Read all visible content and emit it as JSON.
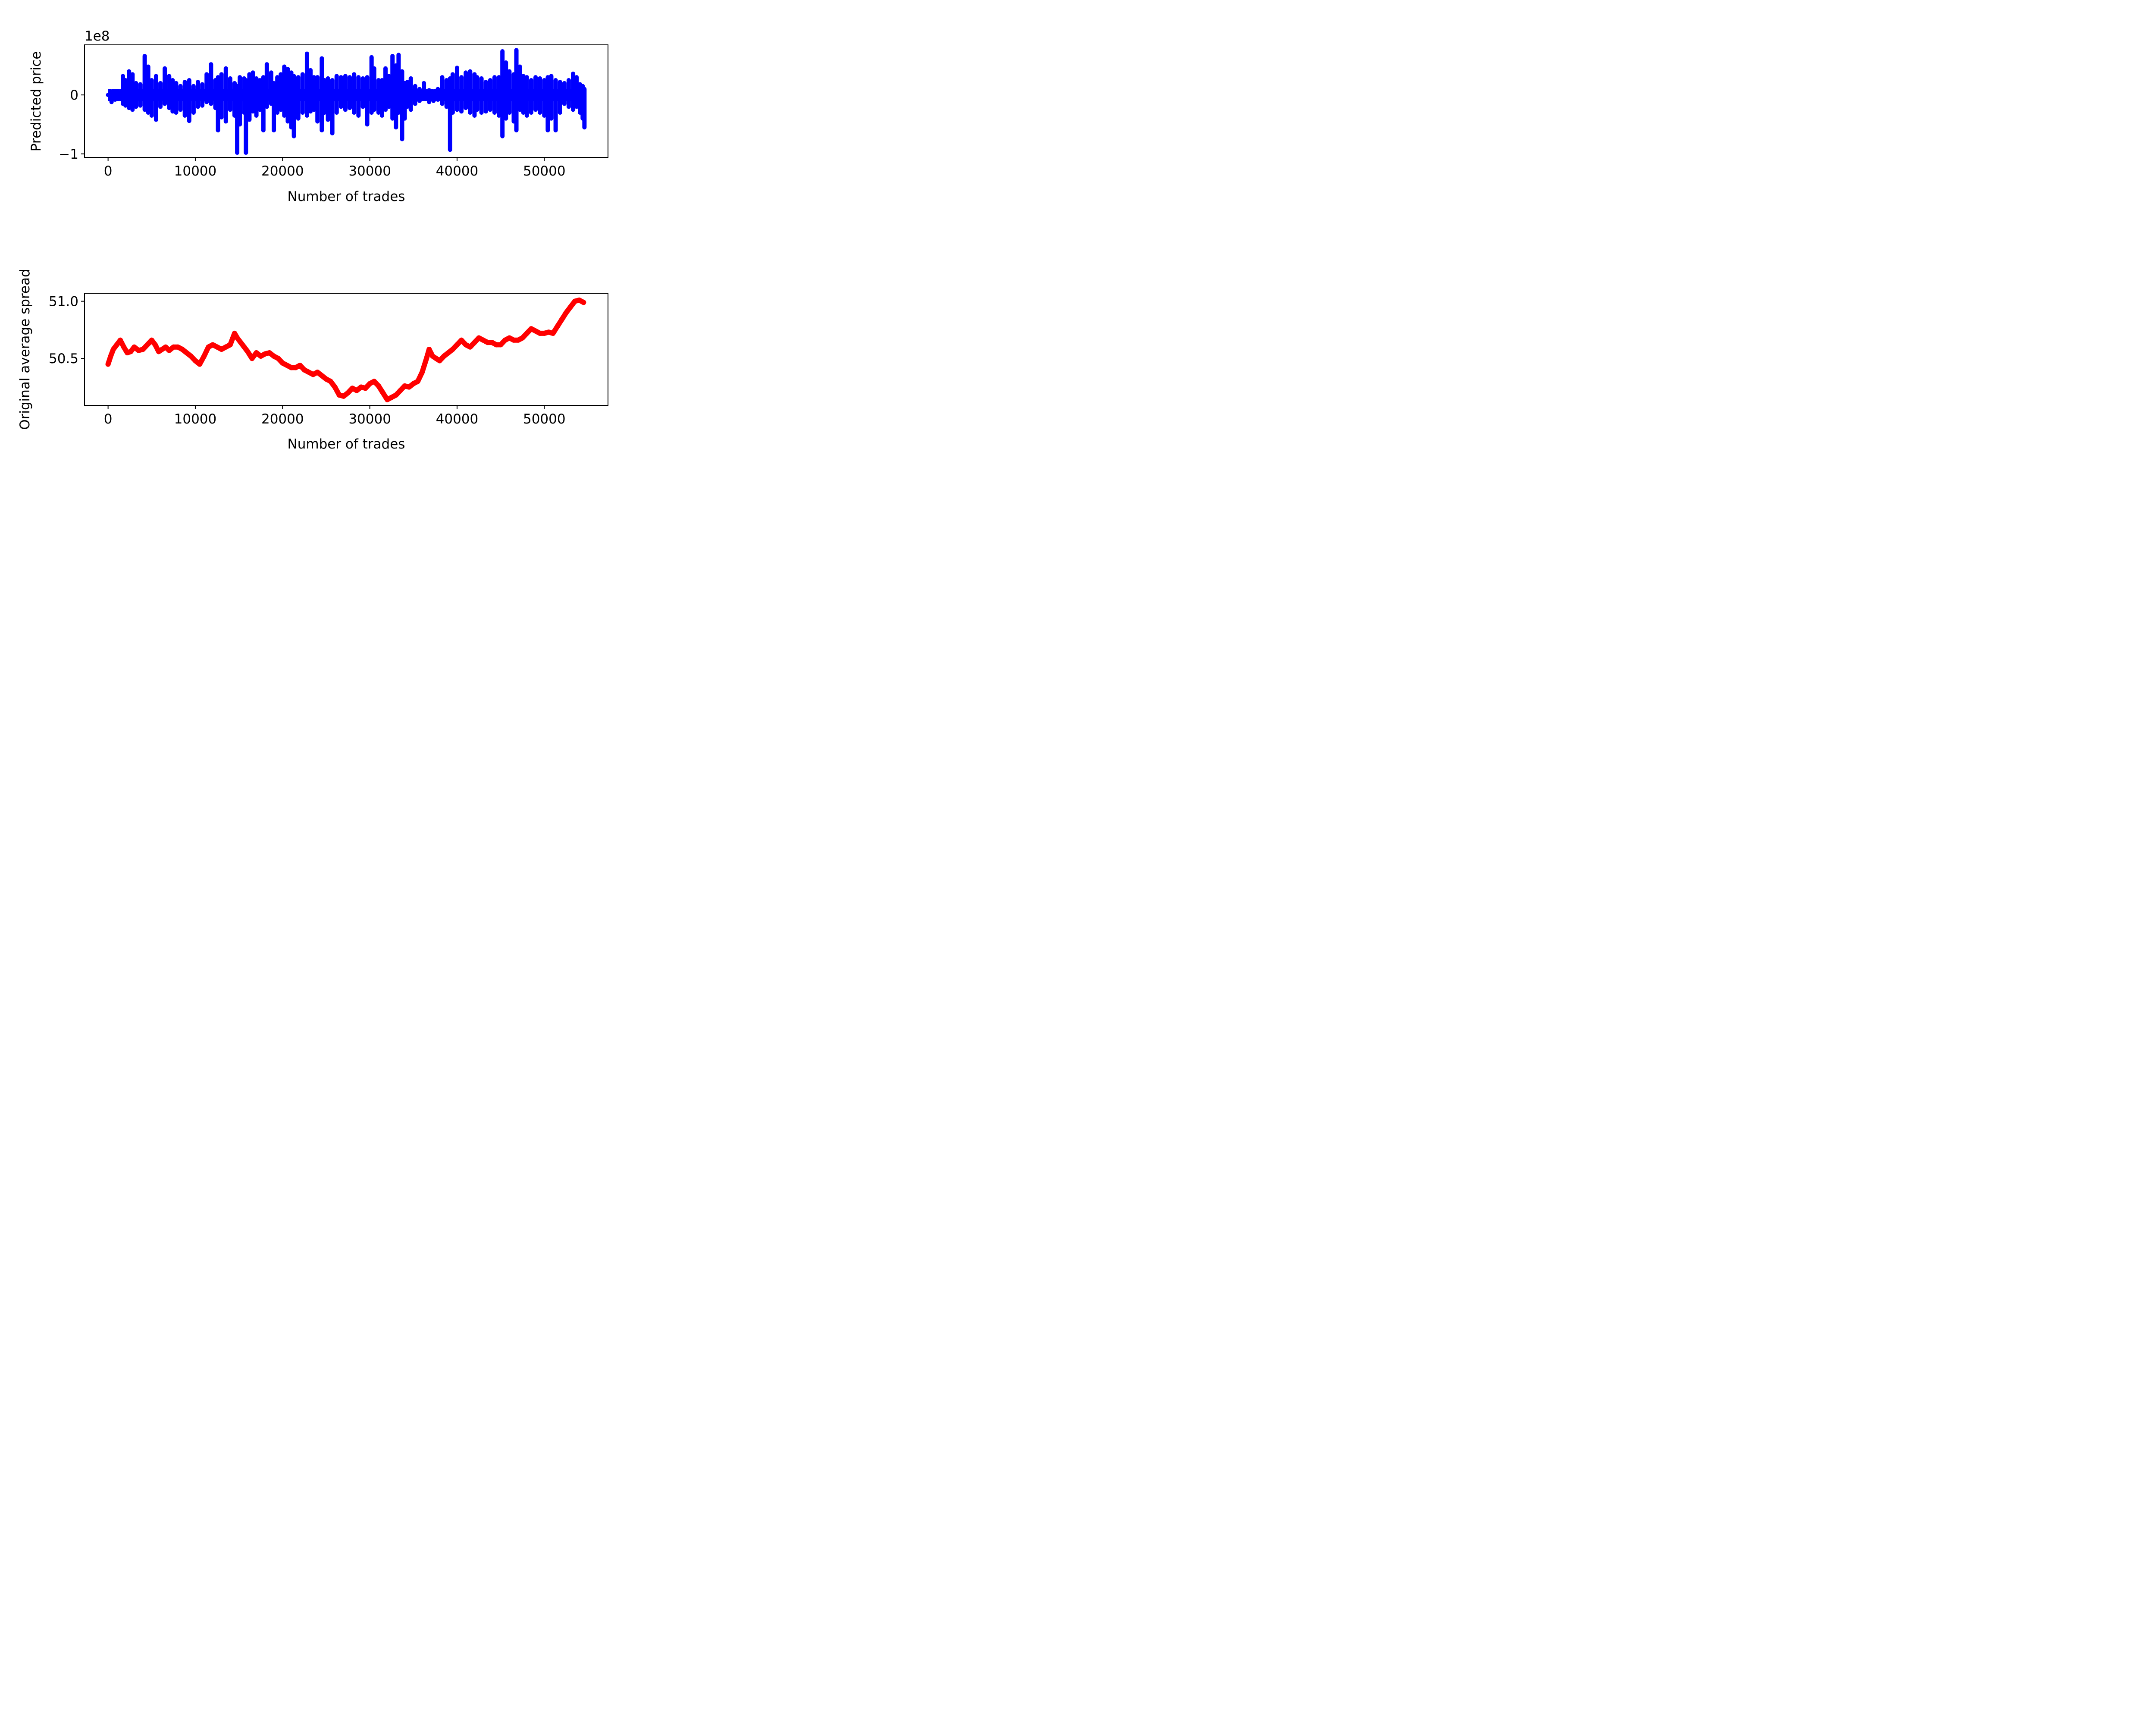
{
  "chart_data": [
    {
      "type": "scatter",
      "xlabel": "Number of trades",
      "ylabel": "Predicted price",
      "offset_text": "1e8",
      "xlim": [
        -2700,
        57300
      ],
      "ylim": [
        -1.06,
        0.85
      ],
      "xticks": [
        0,
        10000,
        20000,
        30000,
        40000,
        50000
      ],
      "xtick_labels": [
        "0",
        "10000",
        "20000",
        "30000",
        "40000",
        "50000"
      ],
      "yticks": [
        -1,
        0
      ],
      "ytick_labels": [
        "−1",
        "0"
      ],
      "grid": false,
      "color": "#0000ff",
      "series": [
        {
          "x": [
            0,
            400,
            800,
            1300,
            1700,
            2000,
            2400,
            2800,
            3200,
            3700,
            4200,
            4600,
            5000,
            5500,
            6000,
            6500,
            7000,
            7400,
            7800,
            8300,
            8800,
            9300,
            9800,
            10300,
            10800,
            11300,
            11800,
            12300,
            12600,
            13000,
            13500,
            14000,
            14500,
            14800,
            15100,
            15600,
            15800,
            16200,
            16600,
            17000,
            17400,
            17800,
            18200,
            18700,
            19000,
            19400,
            19800,
            20200,
            20600,
            21000,
            21300,
            21800,
            22300,
            22800,
            23200,
            23600,
            24000,
            24500,
            24800,
            25200,
            25700,
            26200,
            26700,
            27200,
            27700,
            28200,
            28700,
            29200,
            29700,
            30200,
            30500,
            31000,
            31400,
            31800,
            32200,
            32600,
            33000,
            33300,
            33700,
            34000,
            34300,
            34700,
            35200,
            35700,
            36200,
            36800,
            37300,
            37800,
            38300,
            38800,
            39200,
            39500,
            40000,
            40500,
            41000,
            41500,
            42000,
            42300,
            42800,
            43300,
            43800,
            44300,
            44800,
            45200,
            45600,
            46000,
            46500,
            46800,
            47200,
            47600,
            48000,
            48500,
            49000,
            49500,
            50000,
            50400,
            50800,
            51300,
            51800,
            52300,
            52800,
            53300,
            53700,
            54100,
            54400,
            54600
          ],
          "y_min": [
            0.0,
            -0.12,
            -0.08,
            -0.05,
            -0.15,
            -0.18,
            -0.22,
            -0.25,
            -0.2,
            -0.18,
            -0.25,
            -0.3,
            -0.35,
            -0.42,
            -0.2,
            -0.15,
            -0.22,
            -0.28,
            -0.3,
            -0.25,
            -0.35,
            -0.44,
            -0.3,
            -0.2,
            -0.18,
            -0.12,
            -0.15,
            -0.22,
            -0.6,
            -0.38,
            -0.45,
            -0.25,
            -0.35,
            -0.98,
            -0.5,
            -0.3,
            -0.98,
            -0.42,
            -0.28,
            -0.35,
            -0.25,
            -0.6,
            -0.2,
            -0.15,
            -0.6,
            -0.3,
            -0.25,
            -0.35,
            -0.45,
            -0.55,
            -0.7,
            -0.4,
            -0.3,
            -0.35,
            -0.28,
            -0.25,
            -0.45,
            -0.6,
            -0.3,
            -0.42,
            -0.65,
            -0.3,
            -0.2,
            -0.25,
            -0.22,
            -0.3,
            -0.35,
            -0.2,
            -0.5,
            -0.3,
            -0.25,
            -0.3,
            -0.35,
            -0.25,
            -0.2,
            -0.4,
            -0.55,
            -0.3,
            -0.75,
            -0.4,
            -0.2,
            -0.25,
            -0.15,
            -0.1,
            -0.05,
            -0.12,
            -0.1,
            -0.08,
            -0.15,
            -0.2,
            -0.93,
            -0.3,
            -0.25,
            -0.28,
            -0.22,
            -0.3,
            -0.35,
            -0.25,
            -0.3,
            -0.28,
            -0.25,
            -0.3,
            -0.35,
            -0.7,
            -0.4,
            -0.3,
            -0.45,
            -0.6,
            -0.25,
            -0.3,
            -0.35,
            -0.3,
            -0.25,
            -0.3,
            -0.35,
            -0.6,
            -0.4,
            -0.6,
            -0.3,
            -0.15,
            -0.2,
            -0.25,
            -0.2,
            -0.3,
            -0.4,
            -0.55
          ],
          "y_max": [
            0.0,
            0.05,
            0.06,
            0.04,
            0.32,
            0.25,
            0.4,
            0.35,
            0.2,
            0.18,
            0.66,
            0.48,
            0.25,
            0.32,
            0.2,
            0.45,
            0.32,
            0.25,
            0.2,
            0.15,
            0.22,
            0.25,
            0.15,
            0.22,
            0.18,
            0.35,
            0.52,
            0.25,
            0.3,
            0.35,
            0.45,
            0.28,
            0.2,
            0.15,
            0.3,
            0.28,
            0.25,
            0.35,
            0.38,
            0.28,
            0.25,
            0.3,
            0.52,
            0.38,
            0.2,
            0.3,
            0.35,
            0.48,
            0.44,
            0.38,
            0.32,
            0.3,
            0.35,
            0.7,
            0.42,
            0.3,
            0.3,
            0.62,
            0.25,
            0.28,
            0.25,
            0.32,
            0.3,
            0.32,
            0.3,
            0.35,
            0.3,
            0.28,
            0.3,
            0.64,
            0.45,
            0.25,
            0.25,
            0.45,
            0.32,
            0.66,
            0.5,
            0.68,
            0.4,
            0.2,
            0.22,
            0.28,
            0.15,
            0.1,
            0.2,
            0.08,
            0.05,
            0.1,
            0.3,
            0.25,
            0.28,
            0.35,
            0.46,
            0.3,
            0.38,
            0.4,
            0.35,
            0.3,
            0.28,
            0.22,
            0.25,
            0.3,
            0.3,
            0.74,
            0.55,
            0.4,
            0.35,
            0.76,
            0.48,
            0.32,
            0.3,
            0.25,
            0.3,
            0.28,
            0.25,
            0.3,
            0.32,
            0.25,
            0.22,
            0.2,
            0.25,
            0.36,
            0.3,
            0.18,
            0.15,
            0.1
          ]
        }
      ]
    },
    {
      "type": "line",
      "xlabel": "Number of trades",
      "ylabel": "Original average spread",
      "xlim": [
        -2700,
        57300
      ],
      "ylim": [
        50.09,
        51.07
      ],
      "xticks": [
        0,
        10000,
        20000,
        30000,
        40000,
        50000
      ],
      "xtick_labels": [
        "0",
        "10000",
        "20000",
        "30000",
        "40000",
        "50000"
      ],
      "yticks": [
        50.5,
        51.0
      ],
      "ytick_labels": [
        "50.5",
        "51.0"
      ],
      "grid": false,
      "color": "#ff0000",
      "series": [
        {
          "x": [
            0,
            300,
            600,
            1000,
            1400,
            1800,
            2200,
            2600,
            3000,
            3500,
            4000,
            4500,
            5000,
            5400,
            5800,
            6200,
            6600,
            7000,
            7500,
            8000,
            8500,
            9000,
            9500,
            10000,
            10500,
            11000,
            11500,
            12000,
            12500,
            13000,
            13500,
            14000,
            14500,
            14800,
            15200,
            15600,
            16000,
            16500,
            17000,
            17500,
            18000,
            18500,
            19000,
            19500,
            20000,
            20500,
            21000,
            21500,
            22000,
            22500,
            23000,
            23500,
            24000,
            24500,
            25000,
            25500,
            26000,
            26500,
            27000,
            27500,
            28000,
            28500,
            29000,
            29500,
            30000,
            30500,
            31000,
            31500,
            32000,
            32500,
            33000,
            33500,
            34000,
            34500,
            35000,
            35500,
            36000,
            36500,
            36800,
            37200,
            37600,
            38000,
            38500,
            39000,
            39500,
            40000,
            40500,
            41000,
            41500,
            42000,
            42500,
            43000,
            43500,
            44000,
            44500,
            45000,
            45500,
            46000,
            46500,
            47000,
            47500,
            48000,
            48500,
            49000,
            49500,
            50000,
            50500,
            51000,
            51500,
            52000,
            52500,
            53000,
            53500,
            54000,
            54500
          ],
          "y": [
            50.45,
            50.52,
            50.58,
            50.62,
            50.66,
            50.6,
            50.55,
            50.56,
            50.6,
            50.57,
            50.58,
            50.62,
            50.66,
            50.62,
            50.56,
            50.58,
            50.6,
            50.57,
            50.6,
            50.6,
            50.58,
            50.55,
            50.52,
            50.48,
            50.45,
            50.52,
            50.6,
            50.62,
            50.6,
            50.58,
            50.6,
            50.62,
            50.72,
            50.68,
            50.64,
            50.6,
            50.56,
            50.5,
            50.55,
            50.52,
            50.54,
            50.55,
            50.52,
            50.5,
            50.46,
            50.44,
            50.42,
            50.42,
            50.44,
            50.4,
            50.38,
            50.36,
            50.38,
            50.35,
            50.32,
            50.3,
            50.25,
            50.18,
            50.17,
            50.2,
            50.24,
            50.22,
            50.25,
            50.24,
            50.28,
            50.3,
            50.26,
            50.2,
            50.14,
            50.16,
            50.18,
            50.22,
            50.26,
            50.25,
            50.28,
            50.3,
            50.38,
            50.5,
            50.58,
            50.52,
            50.5,
            50.48,
            50.52,
            50.55,
            50.58,
            50.62,
            50.66,
            50.62,
            50.6,
            50.64,
            50.68,
            50.66,
            50.64,
            50.64,
            50.62,
            50.62,
            50.66,
            50.68,
            50.66,
            50.66,
            50.68,
            50.72,
            50.76,
            50.74,
            50.72,
            50.72,
            50.73,
            50.72,
            50.78,
            50.84,
            50.9,
            50.95,
            51.0,
            51.01,
            50.99
          ]
        }
      ]
    }
  ]
}
